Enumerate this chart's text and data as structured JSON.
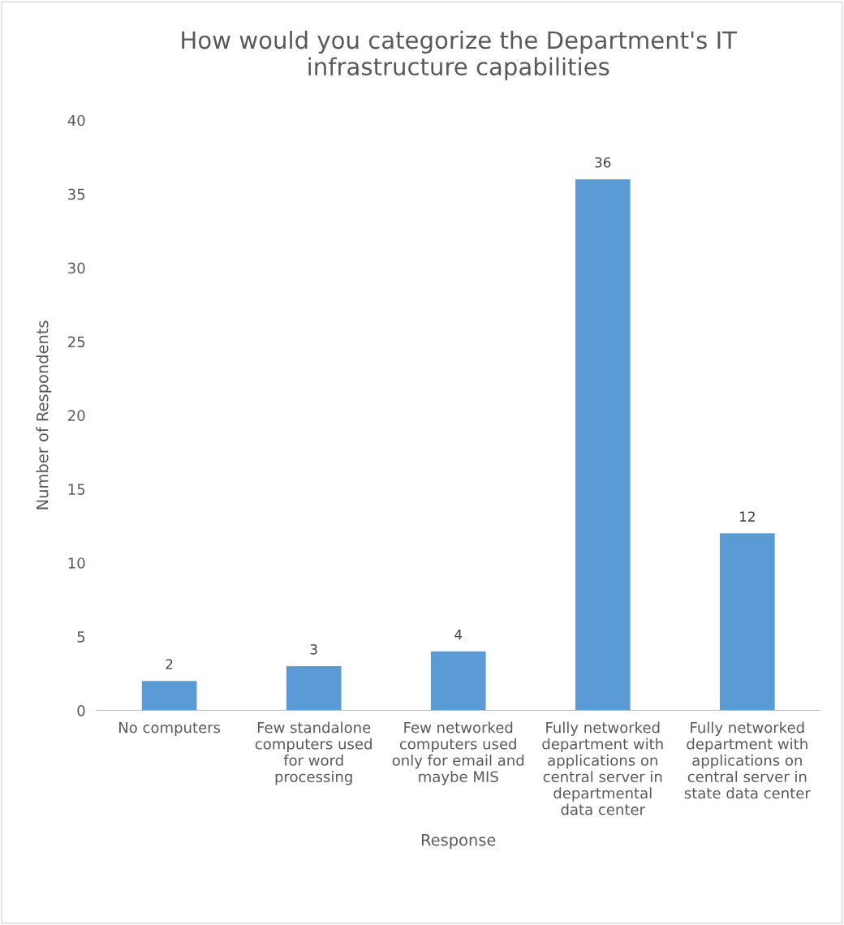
{
  "chart_data": {
    "type": "bar",
    "title": "How would you categorize the Department's IT\ninfrastructure capabilities",
    "xlabel": "Response",
    "ylabel": "Number of Respondents",
    "categories": [
      "No computers",
      "Few standalone\ncomputers used\nfor word\nprocessing",
      "Few networked\ncomputers used\nonly for email and\nmaybe MIS",
      "Fully networked\ndepartment with\napplications on\ncentral server in\ndepartmental\ndata center",
      "Fully networked\ndepartment with\napplications on\ncentral server in\nstate data center"
    ],
    "values": [
      2,
      3,
      4,
      36,
      12
    ],
    "color": "#5b9bd5",
    "ylim": [
      0,
      40
    ],
    "yticks": [
      0,
      5,
      10,
      15,
      20,
      25,
      30,
      35,
      40
    ],
    "grid": false,
    "data_labels": true
  }
}
